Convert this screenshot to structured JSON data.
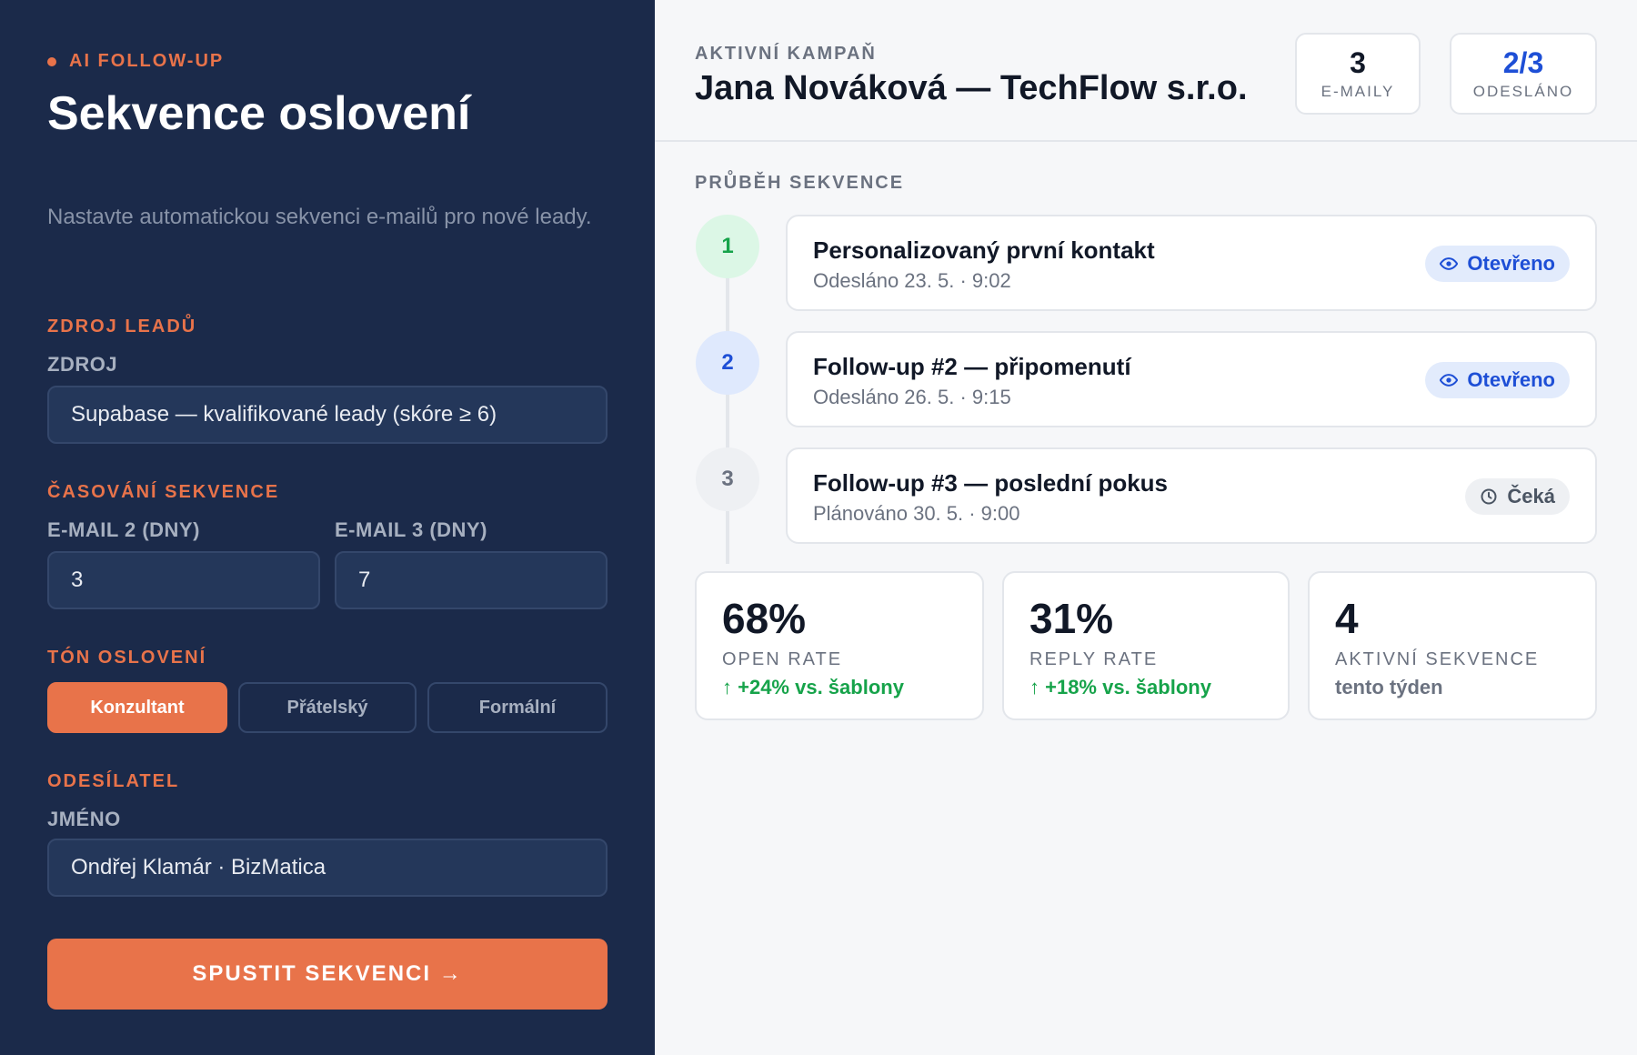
{
  "sidebar": {
    "eyebrow": "AI FOLLOW-UP",
    "title": "Sekvence oslovení",
    "subtitle": "Nastavte automatickou sekvenci e-mailů pro nové leady.",
    "lead_source": {
      "section_label": "ZDROJ LEADŮ",
      "field_label": "ZDROJ",
      "value": "Supabase — kvalifikované leady (skóre ≥ 6)"
    },
    "timing": {
      "section_label": "ČASOVÁNÍ SEKVENCE",
      "email2_label": "E-MAIL 2 (DNY)",
      "email2_value": "3",
      "email3_label": "E-MAIL 3 (DNY)",
      "email3_value": "7"
    },
    "tone": {
      "section_label": "TÓN OSLOVENÍ",
      "options": [
        "Konzultant",
        "Přátelský",
        "Formální"
      ],
      "selected": "Konzultant"
    },
    "sender": {
      "section_label": "ODESÍLATEL",
      "field_label": "JMÉNO",
      "value": "Ondřej Klamár · BizMatica"
    },
    "cta_label": "SPUSTIT SEKVENCI →",
    "accent_color": "#e8734a",
    "bg_color": "#1b2a4a"
  },
  "header": {
    "campaign_label": "AKTIVNÍ KAMPAŇ",
    "campaign_name": "Jana Nováková — TechFlow s.r.o.",
    "stats": [
      {
        "value": "3",
        "label": "E-MAILY"
      },
      {
        "value": "2/3",
        "label": "ODESLÁNO"
      }
    ]
  },
  "progress": {
    "label": "PRŮBĚH SEKVENCE",
    "steps": [
      {
        "number": "1",
        "title": "Personalizovaný první kontakt",
        "meta": "Odesláno 23. 5. · 9:02",
        "status": "Otevřeno",
        "status_icon": "eye-icon"
      },
      {
        "number": "2",
        "title": "Follow-up #2 — připomenutí",
        "meta": "Odesláno 26. 5. · 9:15",
        "status": "Otevřeno",
        "status_icon": "eye-icon"
      },
      {
        "number": "3",
        "title": "Follow-up #3 — poslední pokus",
        "meta": "Plánováno 30. 5. · 9:00",
        "status": "Čeká",
        "status_icon": "clock-icon"
      }
    ]
  },
  "metrics": [
    {
      "value": "68%",
      "label": "OPEN RATE",
      "delta": "↑ +24% vs. šablony"
    },
    {
      "value": "31%",
      "label": "REPLY RATE",
      "delta": "↑ +18% vs. šablony"
    },
    {
      "value": "4",
      "label": "AKTIVNÍ SEKVENCE",
      "delta": "tento týden"
    }
  ]
}
